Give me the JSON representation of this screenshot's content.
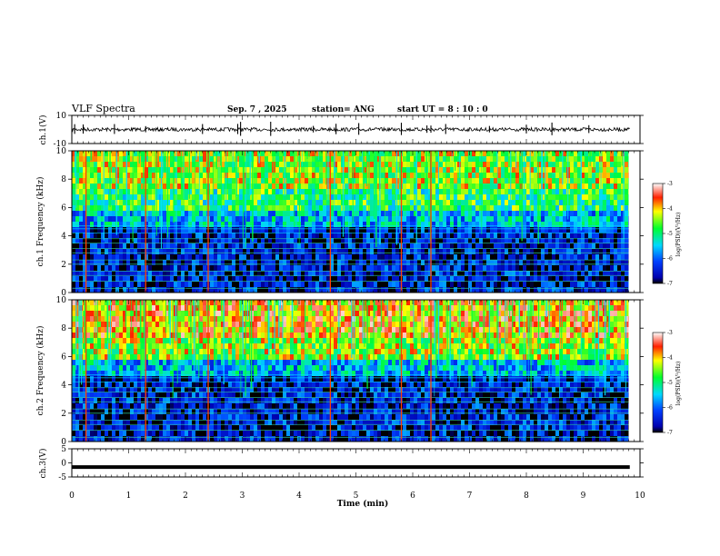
{
  "header": {
    "title": "VLF Spectra",
    "date": "Sep. 7 , 2025",
    "station": "station= ANG",
    "start_time": "start UT = 8 : 10 : 0"
  },
  "chart_data": [
    {
      "type": "line",
      "panel": "ch1_waveform",
      "ylabel": "ch.1(V)",
      "yticks": [
        "10",
        "-10"
      ],
      "ylim": [
        -10,
        10
      ],
      "xlim": [
        0,
        10
      ],
      "baseline": 0,
      "spikes_min": [
        0.05,
        0.2,
        0.75,
        1.3,
        2.3,
        2.92,
        2.97,
        3.5,
        4.25,
        4.65,
        5.05,
        5.8,
        6.25,
        6.32,
        6.58,
        7.35,
        8.0,
        8.45,
        9.1
      ]
    },
    {
      "type": "heatmap",
      "panel": "ch1_spectrogram",
      "ylabel": "ch.1 Frequency (kHz)",
      "yticks": [
        "0",
        "2",
        "4",
        "6",
        "8",
        "10"
      ],
      "ylim": [
        0,
        10
      ],
      "xlim": [
        0,
        9.8
      ],
      "colorbar": {
        "label": "log(PSD)(V²/Hz)",
        "ticks": [
          "-3",
          "-4",
          "-5",
          "-6",
          "-7"
        ],
        "range": [
          -7,
          -3
        ]
      },
      "strong_impulses_min": [
        0.25,
        1.3,
        2.4,
        4.55,
        5.8,
        6.32
      ]
    },
    {
      "type": "heatmap",
      "panel": "ch2_spectrogram",
      "ylabel": "ch.2 Frequency (kHz)",
      "yticks": [
        "0",
        "2",
        "4",
        "6",
        "8",
        "10"
      ],
      "ylim": [
        0,
        10
      ],
      "xlim": [
        0,
        9.8
      ],
      "colorbar": {
        "label": "log(PSD)(V²/Hz)",
        "ticks": [
          "-3",
          "-4",
          "-5",
          "-6",
          "-7"
        ],
        "range": [
          -7,
          -3
        ]
      },
      "strong_impulses_min": [
        0.25,
        1.3,
        2.4,
        4.55,
        5.8,
        6.32
      ]
    },
    {
      "type": "line",
      "panel": "ch3_waveform",
      "ylabel": "ch.3(V)",
      "yticks": [
        "5",
        "0",
        "-5"
      ],
      "ylim": [
        -5,
        5
      ],
      "xlim": [
        0,
        10
      ],
      "constant_value": -1.5
    }
  ],
  "xaxis": {
    "label": "Time (min)",
    "ticks": [
      "0",
      "1",
      "2",
      "3",
      "4",
      "5",
      "6",
      "7",
      "8",
      "9",
      "10"
    ]
  }
}
